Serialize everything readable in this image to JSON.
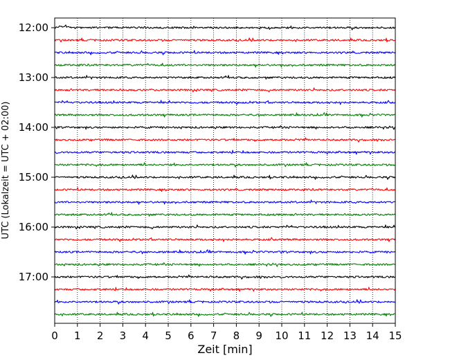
{
  "chart_data": {
    "type": "line",
    "title": "",
    "xlabel": "Zeit  [min]",
    "ylabel": "UTC (Lokalzeit = UTC + 02:00)",
    "xlim": [
      0,
      15
    ],
    "x_ticks": [
      "0",
      "1",
      "2",
      "3",
      "4",
      "5",
      "6",
      "7",
      "8",
      "9",
      "10",
      "11",
      "12",
      "13",
      "14",
      "15"
    ],
    "y_ticks": [
      "12:00",
      "13:00",
      "14:00",
      "15:00",
      "16:00",
      "17:00"
    ],
    "row_interval_min": 15,
    "row_start": "12:00",
    "row_count": 24,
    "row_colors": [
      "#000000",
      "#ff0000",
      "#0000ff",
      "#008000"
    ],
    "grid": "vertical dotted lines at each minute",
    "legend": "none"
  }
}
